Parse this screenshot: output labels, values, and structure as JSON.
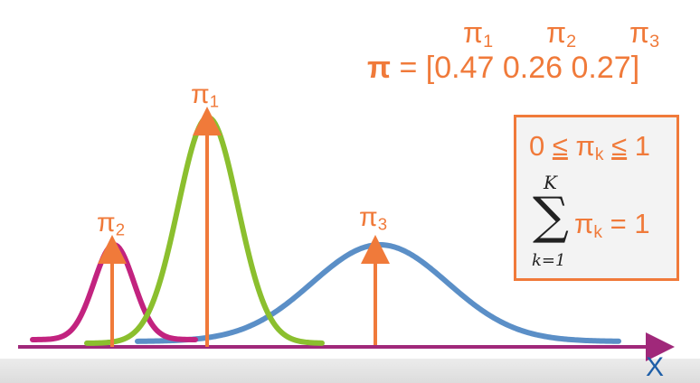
{
  "pi_vector": {
    "headers": [
      "π1",
      "π2",
      "π3"
    ],
    "header_parts": [
      {
        "main": "π",
        "sub": "1"
      },
      {
        "main": "π",
        "sub": "2"
      },
      {
        "main": "π",
        "sub": "3"
      }
    ],
    "symbol": "π",
    "equals": " = [",
    "values": [
      "0.47",
      "0.26",
      "0.27"
    ],
    "close": "]"
  },
  "peak_labels": [
    {
      "main": "π",
      "sub": "1"
    },
    {
      "main": "π",
      "sub": "2"
    },
    {
      "main": "π",
      "sub": "3"
    }
  ],
  "constraints": {
    "bound_left": "0 ",
    "le": "≤",
    "pi": " π",
    "k": "k",
    "bound_right": " 1",
    "sum_upper": "K",
    "sum_symbol": "∑",
    "sum_lower": "k=1",
    "sum_rhs": " = 1"
  },
  "axis": {
    "label": "X"
  },
  "colors": {
    "accent": "#f07a3a",
    "component_1": "#8bbf2e",
    "component_2": "#c2237f",
    "component_3": "#5b8fc7",
    "axis": "#a0287a",
    "axis_label": "#1f5fa8"
  }
}
